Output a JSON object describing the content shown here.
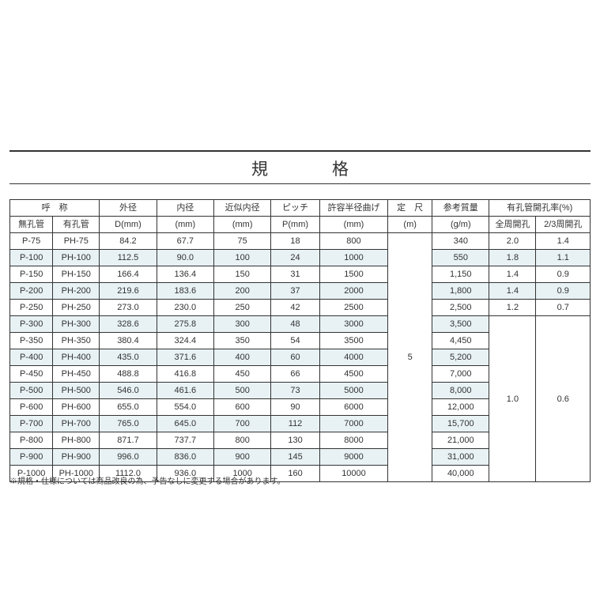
{
  "title": "規　格",
  "footnote": "※規格・仕様については商品改良の為、予告なしに変更する場合があります。",
  "colors": {
    "background": "#ffffff",
    "text": "#333333",
    "border": "#333333",
    "zebra": "#e8f2f5"
  },
  "columns": {
    "group_designation": "呼　称",
    "mukou": "無孔管",
    "yukou": "有孔管",
    "outer_d": "外径",
    "outer_d_unit": "D(mm)",
    "inner_d": "内径",
    "inner_d_unit": "(mm)",
    "approx_inner": "近似内径",
    "approx_inner_unit": "(mm)",
    "pitch": "ピッチ",
    "pitch_unit": "P(mm)",
    "bend_radius": "許容半径曲げ",
    "bend_radius_unit": "(mm)",
    "std_length": "定　尺",
    "std_length_unit": "(m)",
    "ref_mass": "参考質量",
    "ref_mass_unit": "(g/m)",
    "open_ratio_group": "有孔管開孔率(%)",
    "open_full": "全周開孔",
    "open_23": "2/3周開孔"
  },
  "std_length_value": "5",
  "rows": [
    {
      "p": "P-75",
      "ph": "PH-75",
      "od": "84.2",
      "id": "67.7",
      "approx": "75",
      "pitch": "18",
      "bend": "800",
      "mass": "340",
      "full": "2.0",
      "t23": "1.4"
    },
    {
      "p": "P-100",
      "ph": "PH-100",
      "od": "112.5",
      "id": "90.0",
      "approx": "100",
      "pitch": "24",
      "bend": "1000",
      "mass": "550",
      "full": "1.8",
      "t23": "1.1"
    },
    {
      "p": "P-150",
      "ph": "PH-150",
      "od": "166.4",
      "id": "136.4",
      "approx": "150",
      "pitch": "31",
      "bend": "1500",
      "mass": "1,150",
      "full": "1.4",
      "t23": "0.9"
    },
    {
      "p": "P-200",
      "ph": "PH-200",
      "od": "219.6",
      "id": "183.6",
      "approx": "200",
      "pitch": "37",
      "bend": "2000",
      "mass": "1,800",
      "full": "1.4",
      "t23": "0.9"
    },
    {
      "p": "P-250",
      "ph": "PH-250",
      "od": "273.0",
      "id": "230.0",
      "approx": "250",
      "pitch": "42",
      "bend": "2500",
      "mass": "2,500",
      "full": "1.2",
      "t23": "0.7"
    },
    {
      "p": "P-300",
      "ph": "PH-300",
      "od": "328.6",
      "id": "275.8",
      "approx": "300",
      "pitch": "48",
      "bend": "3000",
      "mass": "3,500"
    },
    {
      "p": "P-350",
      "ph": "PH-350",
      "od": "380.4",
      "id": "324.4",
      "approx": "350",
      "pitch": "54",
      "bend": "3500",
      "mass": "4,450"
    },
    {
      "p": "P-400",
      "ph": "PH-400",
      "od": "435.0",
      "id": "371.6",
      "approx": "400",
      "pitch": "60",
      "bend": "4000",
      "mass": "5,200"
    },
    {
      "p": "P-450",
      "ph": "PH-450",
      "od": "488.8",
      "id": "416.8",
      "approx": "450",
      "pitch": "66",
      "bend": "4500",
      "mass": "7,000"
    },
    {
      "p": "P-500",
      "ph": "PH-500",
      "od": "546.0",
      "id": "461.6",
      "approx": "500",
      "pitch": "73",
      "bend": "5000",
      "mass": "8,000"
    },
    {
      "p": "P-600",
      "ph": "PH-600",
      "od": "655.0",
      "id": "554.0",
      "approx": "600",
      "pitch": "90",
      "bend": "6000",
      "mass": "12,000"
    },
    {
      "p": "P-700",
      "ph": "PH-700",
      "od": "765.0",
      "id": "645.0",
      "approx": "700",
      "pitch": "112",
      "bend": "7000",
      "mass": "15,700"
    },
    {
      "p": "P-800",
      "ph": "PH-800",
      "od": "871.7",
      "id": "737.7",
      "approx": "800",
      "pitch": "130",
      "bend": "8000",
      "mass": "21,000"
    },
    {
      "p": "P-900",
      "ph": "PH-900",
      "od": "996.0",
      "id": "836.0",
      "approx": "900",
      "pitch": "145",
      "bend": "9000",
      "mass": "31,000"
    },
    {
      "p": "P-1000",
      "ph": "PH-1000",
      "od": "1112.0",
      "id": "936.0",
      "approx": "1000",
      "pitch": "160",
      "bend": "10000",
      "mass": "40,000"
    }
  ],
  "merged_full": "1.0",
  "merged_t23": "0.6",
  "col_widths_pct": [
    6.9,
    7.5,
    9.2,
    9.2,
    9.2,
    7.8,
    11.0,
    7.1,
    9.2,
    7.5,
    8.7
  ],
  "fontsize_title": 21,
  "fontsize_table": 11,
  "fontsize_footnote": 10
}
